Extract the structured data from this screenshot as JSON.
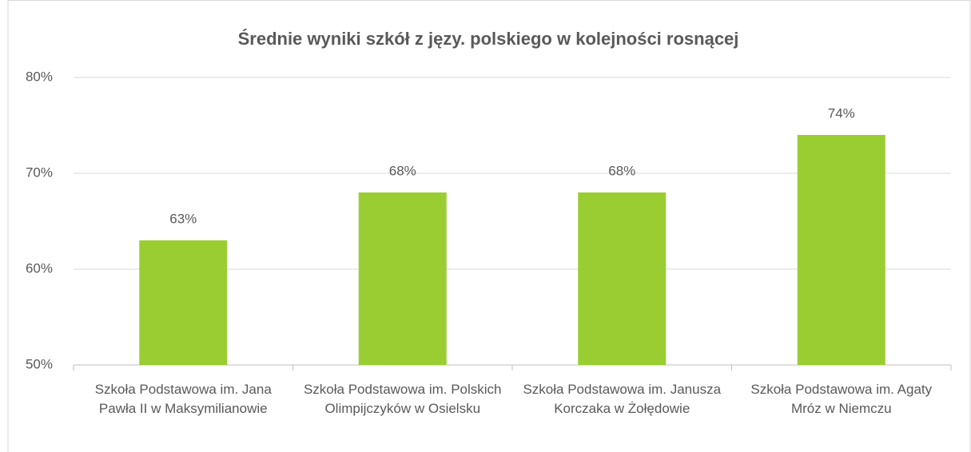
{
  "chart_data": {
    "type": "bar",
    "title": "Średnie wyniki szkół z języ. polskiego w kolejności rosnącej",
    "categories": [
      "Szkoła Podstawowa im. Jana Pawła II w Maksymilianowie",
      "Szkoła Podstawowa im. Polskich Olimpijczyków w Osielsku",
      "Szkoła Podstawowa im. Janusza Korczaka w Żołędowie",
      "Szkoła Podstawowa im. Agaty Mróz w Niemczu"
    ],
    "values": [
      63,
      68,
      68,
      74
    ],
    "value_labels": [
      "63%",
      "68%",
      "68%",
      "74%"
    ],
    "color": "#9acd32",
    "ylim": [
      50,
      80
    ],
    "yticks": [
      {
        "value": 50,
        "label": "50%"
      },
      {
        "value": 60,
        "label": "60%"
      },
      {
        "value": 70,
        "label": "70%"
      },
      {
        "value": 80,
        "label": "80%"
      }
    ],
    "grid": true
  }
}
